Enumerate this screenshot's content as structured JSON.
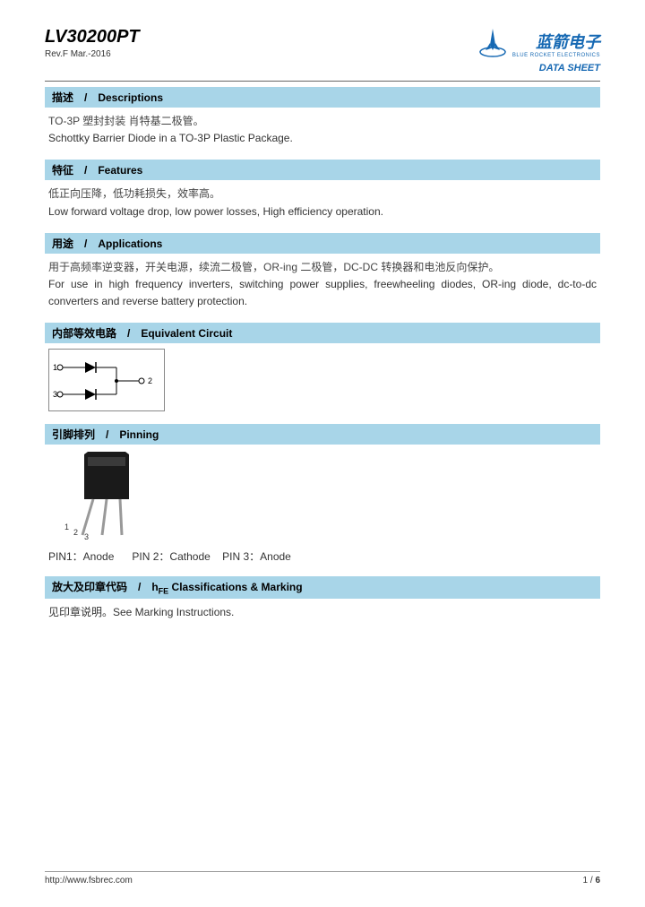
{
  "header": {
    "part_number": "LV30200PT",
    "revision": "Rev.F Mar.-2016",
    "logo_text_cn": "蓝箭电子",
    "logo_subtext": "BLUE ROCKET ELECTRONICS",
    "datasheet_label": "DATA SHEET",
    "logo_color": "#1568b3"
  },
  "sections": {
    "descriptions": {
      "title": "描述　/　Descriptions",
      "cn": "TO-3P 塑封封装 肖特基二极管。",
      "en": "Schottky Barrier Diode in a TO-3P Plastic Package."
    },
    "features": {
      "title": "特征　/　Features",
      "cn": "低正向压降，低功耗损失，效率高。",
      "en": "Low forward voltage drop, low power losses, High efficiency operation."
    },
    "applications": {
      "title": "用途　/　Applications",
      "cn": "用于高频率逆变器，开关电源，续流二极管，OR-ing 二极管，DC-DC 转换器和电池反向保护。",
      "en": "For use in high frequency inverters, switching power supplies, freewheeling diodes, OR-ing diode, dc-to-dc converters and reverse battery protection."
    },
    "equivalent_circuit": {
      "title": "内部等效电路　/　Equivalent Circuit",
      "pins": {
        "p1": "1",
        "p2": "2",
        "p3": "3"
      }
    },
    "pinning": {
      "title": "引脚排列　/　Pinning",
      "labels": {
        "l1": "1",
        "l2": "2",
        "l3": "3"
      },
      "pin1": "PIN1：Anode",
      "pin2": "PIN 2：Cathode",
      "pin3": "PIN 3：Anode"
    },
    "marking": {
      "title_prefix": "放大及印章代码　/　h",
      "title_sub": "FE",
      "title_suffix": " Classifications & Marking",
      "body": "见印章说明。See Marking Instructions."
    }
  },
  "footer": {
    "url": "http://www.fsbrec.com",
    "page": "1 / 6"
  },
  "colors": {
    "section_header_bg": "#a8d5e8",
    "text": "#333333",
    "border": "#888888"
  }
}
